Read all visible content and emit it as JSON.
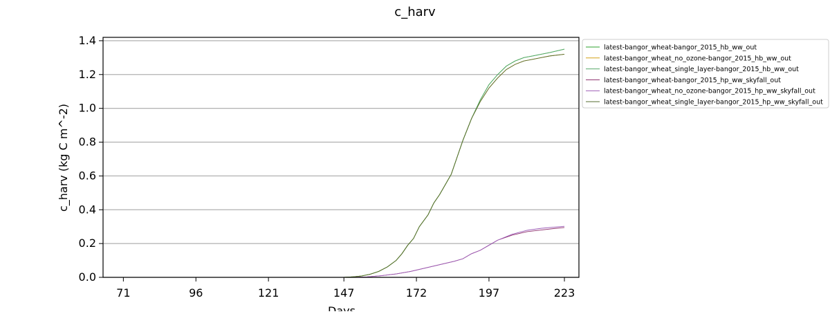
{
  "chart_data": {
    "type": "line",
    "title": "c_harv",
    "xlabel": "Days",
    "ylabel": "c_harv (kg C m^-2)",
    "xlim": [
      64,
      228
    ],
    "ylim": [
      0,
      1.42
    ],
    "xticks": [
      71,
      96,
      121,
      147,
      172,
      197,
      223
    ],
    "yticks": [
      0.0,
      0.2,
      0.4,
      0.6,
      0.8,
      1.0,
      1.2,
      1.4
    ],
    "ytick_labels": [
      "0.0",
      "0.2",
      "0.4",
      "0.6",
      "0.8",
      "1.0",
      "1.2",
      "1.4"
    ],
    "grid": "horizontal",
    "legend_position": "outside-right",
    "series": [
      {
        "name": "latest-bangor_wheat-bangor_2015_hb_ww_out",
        "color": "#2ca02c",
        "x": [
          71,
          147,
          150,
          153,
          156,
          159,
          162,
          165,
          167,
          169,
          171,
          173,
          176,
          178,
          180,
          182,
          184,
          186,
          188,
          191,
          194,
          197,
          200,
          203,
          206,
          209,
          212,
          215,
          218,
          223
        ],
        "y": [
          0.0,
          0.0,
          0.003,
          0.008,
          0.018,
          0.035,
          0.062,
          0.1,
          0.14,
          0.19,
          0.23,
          0.3,
          0.37,
          0.44,
          0.49,
          0.55,
          0.61,
          0.71,
          0.81,
          0.94,
          1.05,
          1.14,
          1.2,
          1.25,
          1.28,
          1.3,
          1.31,
          1.32,
          1.33,
          1.35
        ]
      },
      {
        "name": "latest-bangor_wheat_no_ozone-bangor_2015_hb_ww_out",
        "color": "#d4a017",
        "x": [
          71,
          147,
          150,
          153,
          156,
          159,
          162,
          165,
          167,
          169,
          171,
          173,
          176,
          178,
          180,
          182,
          184,
          186,
          188,
          191,
          194,
          197,
          200,
          203,
          206,
          209,
          212,
          215,
          218,
          223
        ],
        "y": [
          0.0,
          0.0,
          0.003,
          0.008,
          0.018,
          0.035,
          0.062,
          0.1,
          0.14,
          0.19,
          0.23,
          0.3,
          0.37,
          0.44,
          0.49,
          0.55,
          0.61,
          0.71,
          0.81,
          0.94,
          1.04,
          1.12,
          1.18,
          1.23,
          1.26,
          1.28,
          1.29,
          1.3,
          1.31,
          1.32
        ]
      },
      {
        "name": "latest-bangor_wheat_single_layer-bangor_2015_hb_ww_out",
        "color": "#55a868",
        "x": [
          71,
          147,
          150,
          153,
          156,
          159,
          162,
          165,
          167,
          169,
          171,
          173,
          176,
          178,
          180,
          182,
          184,
          186,
          188,
          191,
          194,
          197,
          200,
          203,
          206,
          209,
          212,
          215,
          218,
          223
        ],
        "y": [
          0.0,
          0.0,
          0.003,
          0.008,
          0.018,
          0.035,
          0.062,
          0.1,
          0.14,
          0.19,
          0.23,
          0.3,
          0.37,
          0.44,
          0.49,
          0.55,
          0.61,
          0.71,
          0.81,
          0.94,
          1.05,
          1.14,
          1.2,
          1.25,
          1.28,
          1.3,
          1.31,
          1.32,
          1.33,
          1.35
        ]
      },
      {
        "name": "latest-bangor_wheat-bangor_2015_hp_ww_skyfall_out",
        "color": "#8c2d6b",
        "x": [
          71,
          150,
          155,
          160,
          165,
          170,
          175,
          180,
          185,
          188,
          191,
          194,
          197,
          200,
          205,
          210,
          215,
          220,
          223
        ],
        "y": [
          0.0,
          0.0,
          0.003,
          0.01,
          0.02,
          0.035,
          0.055,
          0.075,
          0.095,
          0.11,
          0.14,
          0.16,
          0.19,
          0.22,
          0.25,
          0.27,
          0.28,
          0.29,
          0.295
        ]
      },
      {
        "name": "latest-bangor_wheat_no_ozone-bangor_2015_hp_ww_skyfall_out",
        "color": "#9b59b6",
        "x": [
          71,
          150,
          155,
          160,
          165,
          170,
          175,
          180,
          185,
          188,
          191,
          194,
          197,
          200,
          205,
          210,
          215,
          220,
          223
        ],
        "y": [
          0.0,
          0.0,
          0.003,
          0.01,
          0.02,
          0.035,
          0.055,
          0.075,
          0.095,
          0.11,
          0.14,
          0.16,
          0.19,
          0.22,
          0.255,
          0.278,
          0.29,
          0.298,
          0.302
        ]
      },
      {
        "name": "latest-bangor_wheat_single_layer-bangor_2015_hp_ww_skyfall_out",
        "color": "#556b2f",
        "x": [
          71,
          147,
          150,
          153,
          156,
          159,
          162,
          165,
          167,
          169,
          171,
          173,
          176,
          178,
          180,
          182,
          184,
          186,
          188,
          191,
          194,
          197,
          200,
          203,
          206,
          209,
          212,
          215,
          218,
          223
        ],
        "y": [
          0.0,
          0.0,
          0.003,
          0.008,
          0.018,
          0.035,
          0.062,
          0.1,
          0.14,
          0.19,
          0.23,
          0.3,
          0.37,
          0.44,
          0.49,
          0.55,
          0.61,
          0.71,
          0.81,
          0.94,
          1.04,
          1.12,
          1.18,
          1.23,
          1.26,
          1.28,
          1.29,
          1.3,
          1.31,
          1.32
        ]
      }
    ]
  }
}
